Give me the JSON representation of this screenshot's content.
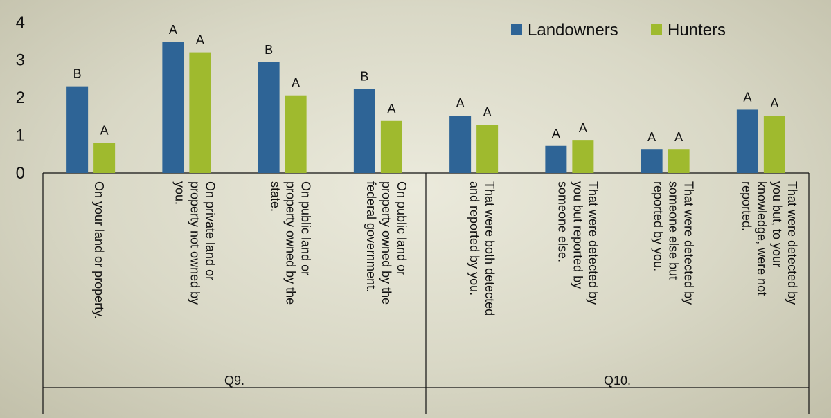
{
  "chart_data": {
    "type": "bar",
    "categories": [
      "On your land or property.",
      "On private land or property not owned by you.",
      "On public land or property owned by the state.",
      "On public land or property owned by the federal government.",
      "That were both detected and reported by you.",
      "That were detected by you but reported by someone else.",
      "That were detected by someone else but reported by you.",
      "That were detected by you but, to your knowledge, were not reported."
    ],
    "category_lines": [
      [
        "On your land or property."
      ],
      [
        "On private land or",
        "property not owned by",
        "you."
      ],
      [
        "On public land or",
        "property owned by the",
        "state."
      ],
      [
        "On public land or",
        "property owned by the",
        "federal government."
      ],
      [
        "That were both detected",
        "and reported by you."
      ],
      [
        "That were detected by",
        "you but reported by",
        "someone else."
      ],
      [
        "That were detected by",
        "someone else but",
        "reported by you."
      ],
      [
        "That were detected by",
        "you but, to your",
        "knowledge, were not",
        "reported."
      ]
    ],
    "groups": [
      {
        "label": "Q9.",
        "start": 0,
        "end": 3
      },
      {
        "label": "Q10.",
        "start": 4,
        "end": 7
      }
    ],
    "series": [
      {
        "name": "Landowners",
        "color": "#2e6496",
        "values": [
          2.3,
          3.47,
          2.94,
          2.23,
          1.52,
          0.72,
          0.62,
          1.68
        ],
        "labels": [
          "B",
          "A",
          "B",
          "B",
          "A",
          "A",
          "A",
          "A"
        ]
      },
      {
        "name": "Hunters",
        "color": "#9fba2e",
        "values": [
          0.8,
          3.2,
          2.06,
          1.38,
          1.28,
          0.86,
          0.62,
          1.52
        ],
        "labels": [
          "A",
          "A",
          "A",
          "A",
          "A",
          "A",
          "A",
          "A"
        ]
      }
    ],
    "yticks": [
      0,
      1,
      2,
      3,
      4
    ],
    "ylim": [
      0,
      4
    ],
    "xlabel": "",
    "ylabel": "",
    "title": "",
    "grid": false,
    "legend_position": "top-right"
  }
}
